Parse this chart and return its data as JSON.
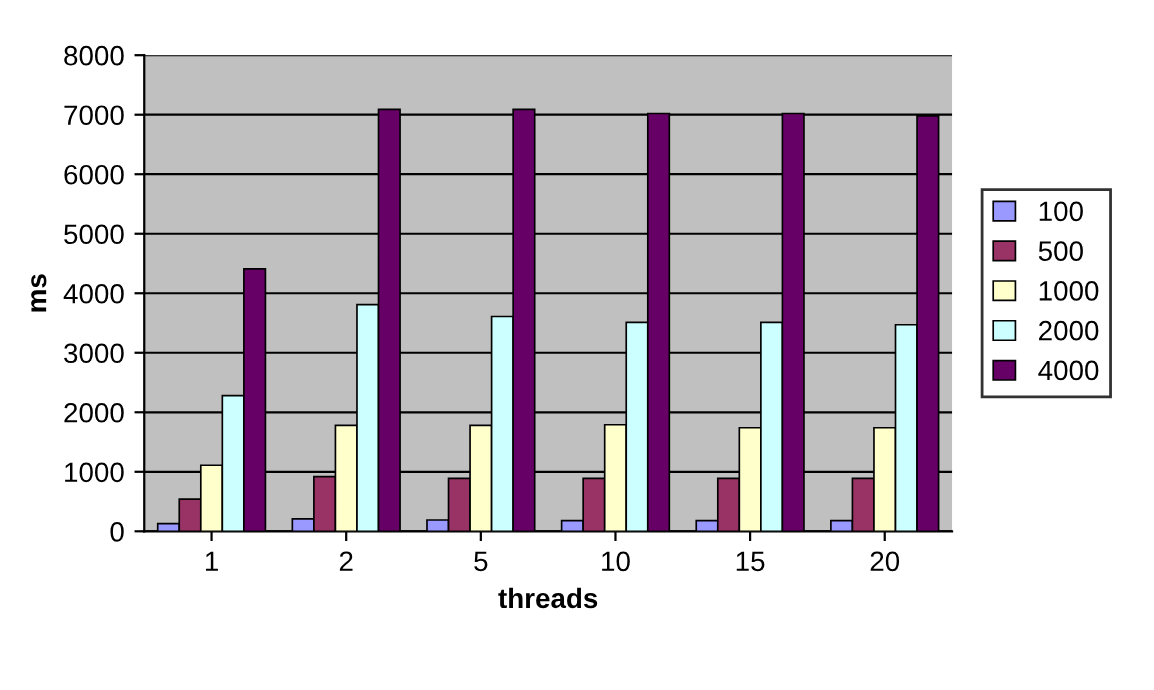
{
  "chart_data": {
    "type": "bar",
    "xlabel": "threads",
    "ylabel": "ms",
    "categories": [
      "1",
      "2",
      "5",
      "10",
      "15",
      "20"
    ],
    "series": [
      {
        "name": "100",
        "color": "#9999ff",
        "values": [
          130,
          210,
          190,
          180,
          180,
          180
        ]
      },
      {
        "name": "500",
        "color": "#993366",
        "values": [
          540,
          920,
          890,
          890,
          890,
          890
        ]
      },
      {
        "name": "1000",
        "color": "#ffffcc",
        "values": [
          1110,
          1780,
          1780,
          1790,
          1740,
          1740
        ]
      },
      {
        "name": "2000",
        "color": "#ccffff",
        "values": [
          2280,
          3810,
          3610,
          3510,
          3510,
          3470
        ]
      },
      {
        "name": "4000",
        "color": "#660066",
        "values": [
          4410,
          7090,
          7090,
          7020,
          7020,
          6980
        ]
      }
    ],
    "ylim": [
      0,
      8000
    ],
    "yticks": [
      0,
      1000,
      2000,
      3000,
      4000,
      5000,
      6000,
      7000,
      8000
    ],
    "grid": "y",
    "legend": "right"
  }
}
